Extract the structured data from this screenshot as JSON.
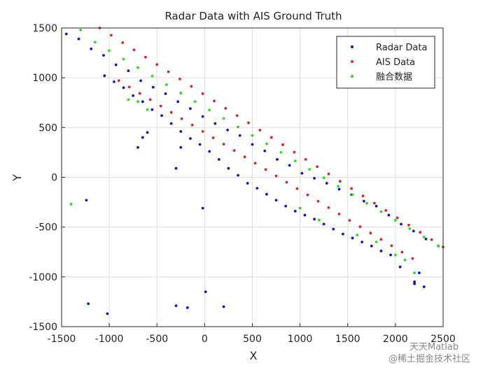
{
  "chart_data": {
    "type": "scatter",
    "title": "Radar Data with AIS Ground Truth",
    "x_label": "X",
    "y_label": "Y",
    "xlim": [
      -1500,
      2500
    ],
    "ylim": [
      -1500,
      1500
    ],
    "xticks": [
      -1500,
      -1000,
      -500,
      0,
      500,
      1000,
      1500,
      2000,
      2500
    ],
    "yticks": [
      -1500,
      -1000,
      -500,
      0,
      500,
      1000,
      1500
    ],
    "grid": true,
    "legend": "northeast",
    "watermark": [
      "天天Matlab",
      "@稀土掘金技术社区"
    ],
    "series": [
      {
        "name": "Radar Data",
        "color": "#1010d0",
        "x": [
          -1450,
          -1320,
          -1190,
          -1060,
          -930,
          -800,
          -670,
          -540,
          -410,
          -280,
          -150,
          -20,
          110,
          240,
          370,
          500,
          630,
          760,
          890,
          1020,
          1150,
          1280,
          1410,
          1540,
          1670,
          1800,
          1930,
          2060,
          2190,
          2320,
          2450,
          -1050,
          -950,
          -850,
          -750,
          -650,
          -550,
          -450,
          -350,
          -250,
          -150,
          -50,
          50,
          150,
          250,
          350,
          450,
          550,
          650,
          750,
          850,
          950,
          1050,
          1150,
          1250,
          1350,
          1450,
          1550,
          1650,
          1750,
          1850,
          1950,
          2050,
          2200,
          2300,
          -1240,
          -1220,
          -1020,
          -300,
          -180,
          200,
          10,
          -20,
          -700,
          -650,
          -600,
          -300,
          -250,
          2250,
          2200
        ],
        "y": [
          1440,
          1390,
          1290,
          1225,
          1130,
          1070,
          970,
          905,
          840,
          760,
          690,
          610,
          540,
          475,
          420,
          330,
          265,
          180,
          120,
          40,
          -10,
          -60,
          -120,
          -175,
          -240,
          -290,
          -380,
          -470,
          -540,
          -620,
          -690,
          1020,
          960,
          900,
          820,
          760,
          680,
          620,
          540,
          460,
          390,
          330,
          260,
          180,
          90,
          20,
          -60,
          -110,
          -170,
          -230,
          -290,
          -340,
          -380,
          -420,
          -470,
          -520,
          -570,
          -610,
          -650,
          -690,
          -740,
          -780,
          -900,
          -1050,
          -1100,
          -230,
          -1270,
          -1370,
          -1290,
          -1310,
          -1300,
          -1150,
          -310,
          300,
          400,
          450,
          90,
          300,
          -960,
          -1070
        ]
      },
      {
        "name": "AIS Data",
        "color": "#e02020",
        "x": [
          -1100,
          -980,
          -860,
          -740,
          -620,
          -500,
          -380,
          -260,
          -140,
          -20,
          100,
          220,
          340,
          460,
          580,
          700,
          820,
          940,
          1060,
          1180,
          1300,
          1420,
          1540,
          1660,
          1780,
          1900,
          2020,
          2140,
          2260,
          2380,
          2500,
          -900,
          -790,
          -680,
          -570,
          -460,
          -350,
          -240,
          -130,
          -20,
          90,
          200,
          310,
          420,
          530,
          640,
          750,
          860,
          970,
          1080,
          1190,
          1300,
          1410,
          1520,
          1630,
          1740,
          1850,
          1960,
          2070,
          2180
        ],
        "y": [
          1500,
          1427,
          1353,
          1280,
          1207,
          1133,
          1060,
          987,
          913,
          840,
          767,
          693,
          620,
          547,
          473,
          400,
          327,
          253,
          180,
          107,
          33,
          -40,
          -113,
          -187,
          -260,
          -333,
          -407,
          -480,
          -553,
          -627,
          -700,
          971,
          907,
          843,
          780,
          716,
          652,
          588,
          525,
          461,
          397,
          333,
          269,
          205,
          142,
          78,
          14,
          -50,
          -114,
          -177,
          -241,
          -305,
          -369,
          -433,
          -496,
          -560,
          -624,
          -688,
          -752,
          -815
        ]
      },
      {
        "name": "融合数据",
        "color": "#20e020",
        "x": [
          -1300,
          -1150,
          -1000,
          -850,
          -700,
          -550,
          -400,
          -250,
          -100,
          50,
          200,
          350,
          500,
          650,
          800,
          950,
          1100,
          1250,
          1400,
          1550,
          1700,
          1850,
          2000,
          2150,
          2300,
          2450,
          -1400,
          -800,
          -700,
          -600,
          1000,
          1200,
          1600,
          1800,
          2000,
          2100,
          2200
        ],
        "y": [
          1480,
          1357,
          1272,
          1187,
          1102,
          1017,
          931,
          846,
          761,
          676,
          591,
          506,
          421,
          336,
          250,
          165,
          80,
          -5,
          -90,
          -175,
          -261,
          -346,
          -431,
          -516,
          -601,
          -687,
          -270,
          780,
          760,
          680,
          -310,
          -430,
          -580,
          -650,
          -780,
          -830,
          -960
        ]
      }
    ]
  }
}
